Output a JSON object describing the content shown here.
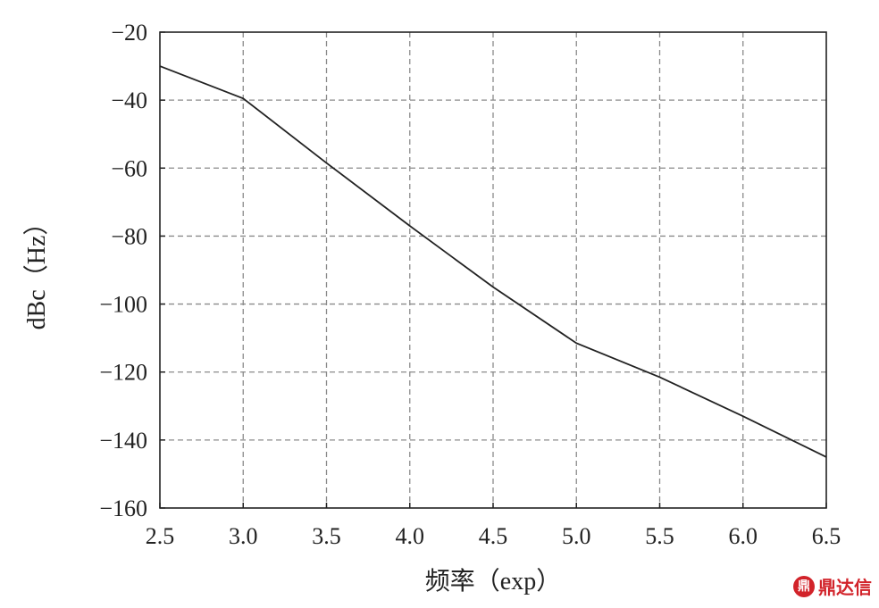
{
  "chart_data": {
    "type": "line",
    "title": "",
    "xlabel": "频率（exp）",
    "ylabel": "dBc（Hz）",
    "xlim": [
      2.5,
      6.5
    ],
    "ylim": [
      -160,
      -20
    ],
    "x_ticks": [
      2.5,
      3.0,
      3.5,
      4.0,
      4.5,
      5.0,
      5.5,
      6.0,
      6.5
    ],
    "x_tick_labels": [
      "2.5",
      "3.0",
      "3.5",
      "4.0",
      "4.5",
      "5.0",
      "5.5",
      "6.0",
      "6.5"
    ],
    "y_ticks": [
      -20,
      -40,
      -60,
      -80,
      -100,
      -120,
      -140,
      -160
    ],
    "y_tick_labels": [
      "−20",
      "−40",
      "−60",
      "−80",
      "−100",
      "−120",
      "−140",
      "−160"
    ],
    "grid": true,
    "series": [
      {
        "x": [
          2.5,
          3.0,
          3.5,
          4.0,
          4.5,
          5.0,
          5.5,
          6.0,
          6.5
        ],
        "y": [
          -30,
          -39.5,
          -58.5,
          -77,
          -95,
          -111.5,
          -121.5,
          -133,
          -145
        ]
      }
    ],
    "colors": {
      "line": "#222222",
      "grid": "#8a8a8a"
    }
  },
  "watermark": {
    "logo_text": "鼎",
    "text": "鼎达信",
    "color": "#d2232a"
  }
}
